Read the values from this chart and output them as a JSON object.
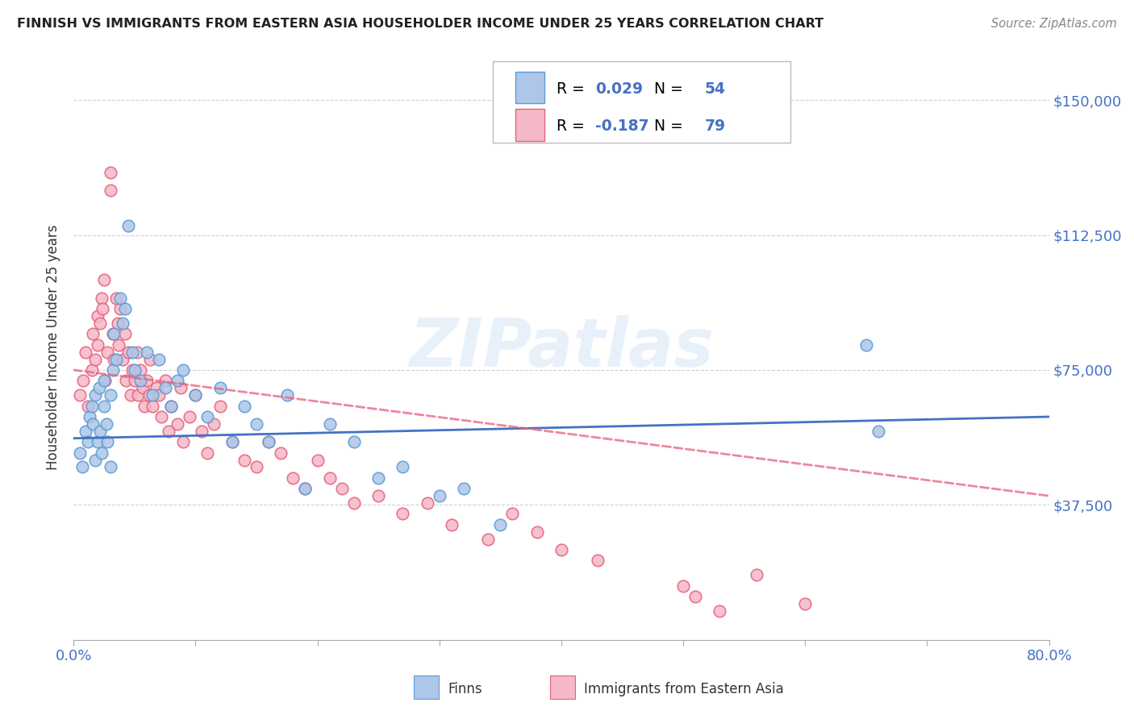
{
  "title": "FINNISH VS IMMIGRANTS FROM EASTERN ASIA HOUSEHOLDER INCOME UNDER 25 YEARS CORRELATION CHART",
  "source": "Source: ZipAtlas.com",
  "ylabel": "Householder Income Under 25 years",
  "legend_label1": "Finns",
  "legend_label2": "Immigrants from Eastern Asia",
  "R_finns": 0.029,
  "N_finns": 54,
  "R_immigrants": -0.187,
  "N_immigrants": 79,
  "ytick_labels": [
    "$37,500",
    "$75,000",
    "$112,500",
    "$150,000"
  ],
  "ytick_values": [
    37500,
    75000,
    112500,
    150000
  ],
  "ymin": 0,
  "ymax": 162500,
  "xmin": 0.0,
  "xmax": 0.8,
  "color_finns_fill": "#aec6e8",
  "color_finns_edge": "#5b9bd5",
  "color_immigrants_fill": "#f4b8c8",
  "color_immigrants_edge": "#e8607a",
  "color_line_finns": "#4472c4",
  "color_line_immigrants": "#e8607a",
  "color_text_blue": "#4472c4",
  "color_grid": "#d0d0d0",
  "watermark_text": "ZIPatlas",
  "finns_x": [
    0.005,
    0.007,
    0.01,
    0.012,
    0.013,
    0.015,
    0.016,
    0.018,
    0.018,
    0.02,
    0.021,
    0.022,
    0.023,
    0.025,
    0.025,
    0.027,
    0.028,
    0.03,
    0.03,
    0.032,
    0.033,
    0.035,
    0.038,
    0.04,
    0.042,
    0.045,
    0.048,
    0.05,
    0.055,
    0.06,
    0.065,
    0.07,
    0.075,
    0.08,
    0.085,
    0.09,
    0.1,
    0.11,
    0.12,
    0.13,
    0.14,
    0.15,
    0.16,
    0.175,
    0.19,
    0.21,
    0.23,
    0.25,
    0.27,
    0.3,
    0.32,
    0.35,
    0.65,
    0.66
  ],
  "finns_y": [
    52000,
    48000,
    58000,
    55000,
    62000,
    65000,
    60000,
    68000,
    50000,
    55000,
    70000,
    58000,
    52000,
    65000,
    72000,
    60000,
    55000,
    68000,
    48000,
    75000,
    85000,
    78000,
    95000,
    88000,
    92000,
    115000,
    80000,
    75000,
    72000,
    80000,
    68000,
    78000,
    70000,
    65000,
    72000,
    75000,
    68000,
    62000,
    70000,
    55000,
    65000,
    60000,
    55000,
    68000,
    42000,
    60000,
    55000,
    45000,
    48000,
    40000,
    42000,
    32000,
    82000,
    58000
  ],
  "immigrants_x": [
    0.005,
    0.008,
    0.01,
    0.012,
    0.015,
    0.016,
    0.018,
    0.02,
    0.02,
    0.022,
    0.023,
    0.024,
    0.025,
    0.026,
    0.028,
    0.03,
    0.03,
    0.032,
    0.033,
    0.035,
    0.036,
    0.037,
    0.038,
    0.04,
    0.042,
    0.043,
    0.045,
    0.047,
    0.048,
    0.05,
    0.052,
    0.053,
    0.055,
    0.057,
    0.058,
    0.06,
    0.062,
    0.063,
    0.065,
    0.068,
    0.07,
    0.072,
    0.075,
    0.078,
    0.08,
    0.085,
    0.088,
    0.09,
    0.095,
    0.1,
    0.105,
    0.11,
    0.115,
    0.12,
    0.13,
    0.14,
    0.15,
    0.16,
    0.17,
    0.18,
    0.19,
    0.2,
    0.21,
    0.22,
    0.23,
    0.25,
    0.27,
    0.29,
    0.31,
    0.34,
    0.36,
    0.38,
    0.4,
    0.43,
    0.5,
    0.51,
    0.53,
    0.56,
    0.6
  ],
  "immigrants_y": [
    68000,
    72000,
    80000,
    65000,
    75000,
    85000,
    78000,
    90000,
    82000,
    88000,
    95000,
    92000,
    100000,
    72000,
    80000,
    130000,
    125000,
    85000,
    78000,
    95000,
    88000,
    82000,
    92000,
    78000,
    85000,
    72000,
    80000,
    68000,
    75000,
    72000,
    80000,
    68000,
    75000,
    70000,
    65000,
    72000,
    68000,
    78000,
    65000,
    70000,
    68000,
    62000,
    72000,
    58000,
    65000,
    60000,
    70000,
    55000,
    62000,
    68000,
    58000,
    52000,
    60000,
    65000,
    55000,
    50000,
    48000,
    55000,
    52000,
    45000,
    42000,
    50000,
    45000,
    42000,
    38000,
    40000,
    35000,
    38000,
    32000,
    28000,
    35000,
    30000,
    25000,
    22000,
    15000,
    12000,
    8000,
    18000,
    10000
  ]
}
